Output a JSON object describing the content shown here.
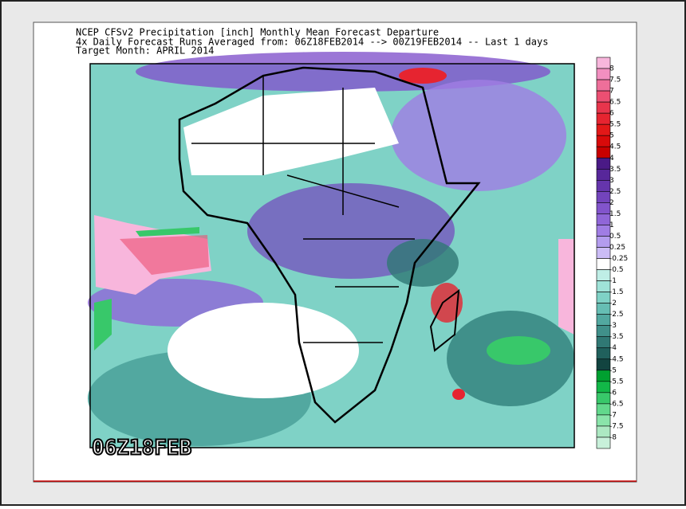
{
  "header": {
    "line1": "NCEP CFSv2 Precipitation [inch] Monthly Mean Forecast Departure",
    "line2": "4x Daily Forecast Runs Averaged from: 06Z18FEB2014 --> 00Z19FEB2014 -- Last 1 days",
    "line3": "Target Month: APRIL 2014"
  },
  "timestamp": "06Z18FEB",
  "colorbar": {
    "labels": [
      "8",
      "7.5",
      "7",
      "6.5",
      "6",
      "5.5",
      "5",
      "4.5",
      "4",
      "3.5",
      "3",
      "2.5",
      "2",
      "1.5",
      "1",
      "0.5",
      "0.25",
      "-0.25",
      "-0.5",
      "-1",
      "-1.5",
      "-2",
      "-2.5",
      "-3",
      "-3.5",
      "-4",
      "-4.5",
      "-5",
      "-5.5",
      "-6",
      "-6.5",
      "-7",
      "-7.5",
      "-8"
    ],
    "colors": [
      "#f8b6dc",
      "#f28fc0",
      "#ee6f9a",
      "#ec4f72",
      "#e8354c",
      "#e62430",
      "#e21818",
      "#d80a0a",
      "#c80000",
      "#4a1a86",
      "#57279a",
      "#6535ac",
      "#7344bd",
      "#8254cc",
      "#9066d8",
      "#a07de4",
      "#b39cee",
      "#cbbcf6",
      "#ffffff",
      "#bfeee6",
      "#9fe3d8",
      "#7fd2c6",
      "#66beb4",
      "#52a8a0",
      "#40908a",
      "#307874",
      "#20605c",
      "#124440",
      "#00a030",
      "#12b848",
      "#38c86a",
      "#62d88c",
      "#8ae4aa",
      "#ace8c2",
      "#c8f0da"
    ]
  }
}
